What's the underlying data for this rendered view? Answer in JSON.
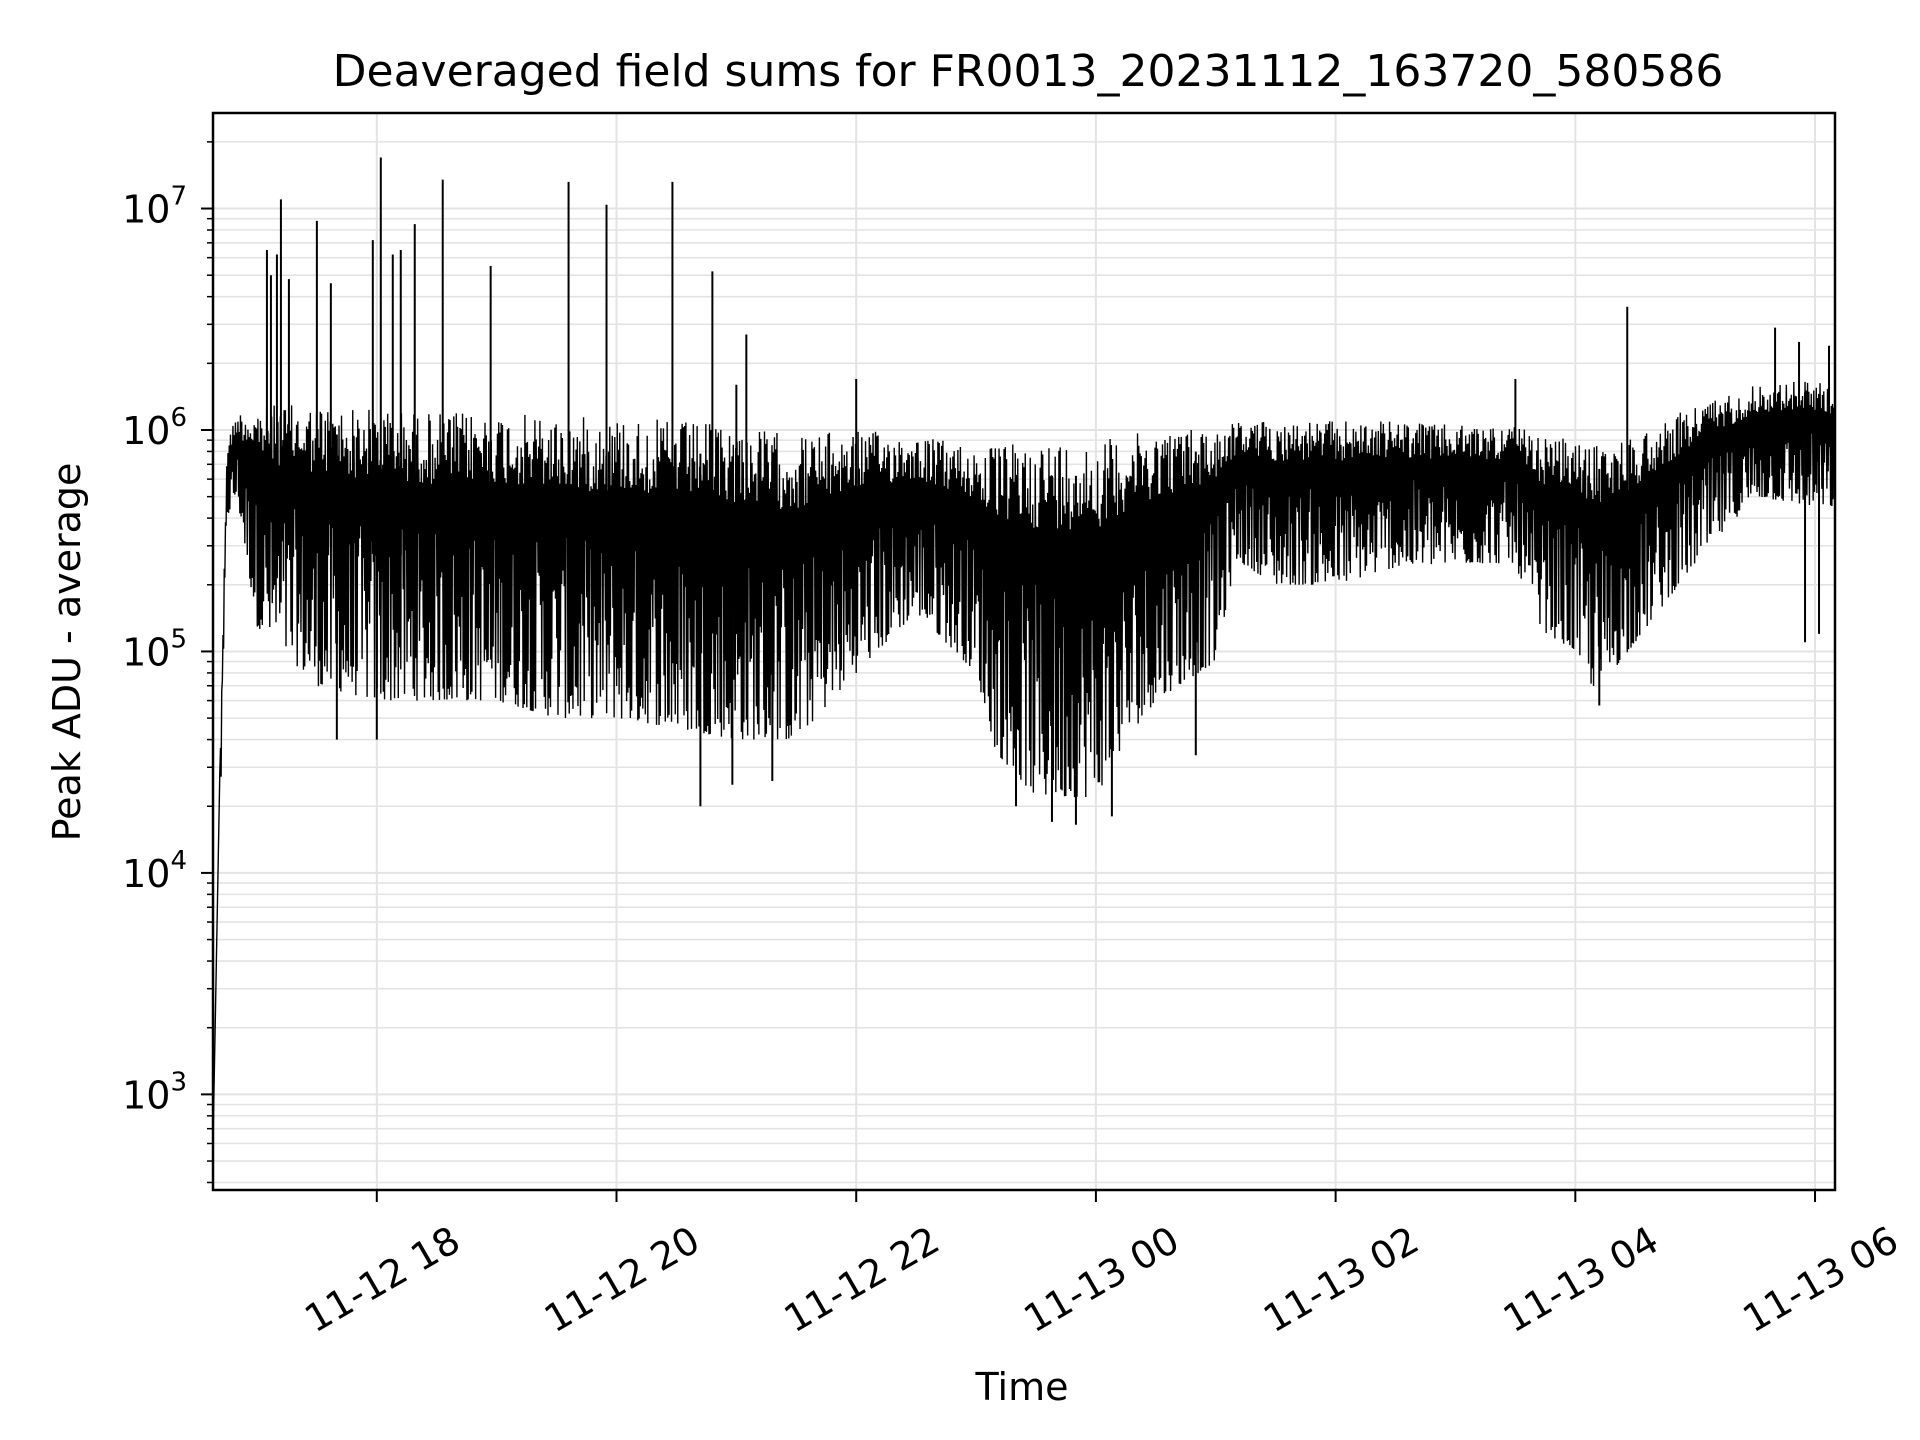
{
  "chart_data": {
    "type": "line",
    "title": "Deaveraged field sums for FR0013_20231112_163720_580586",
    "xlabel": "Time",
    "ylabel": "Peak ADU - average",
    "yscale": "log",
    "ylim": [
      370,
      27000000
    ],
    "xlim": [
      "2023-11-12 16:38",
      "2023-11-13 06:10"
    ],
    "grid": true,
    "line_color": "#000000",
    "grid_color": "#e3e3e3",
    "x_ticks": [
      {
        "value": "2023-11-12 18:00",
        "label": "11-12 18"
      },
      {
        "value": "2023-11-12 20:00",
        "label": "11-12 20"
      },
      {
        "value": "2023-11-12 22:00",
        "label": "11-12 22"
      },
      {
        "value": "2023-11-13 00:00",
        "label": "11-13 00"
      },
      {
        "value": "2023-11-13 02:00",
        "label": "11-13 02"
      },
      {
        "value": "2023-11-13 04:00",
        "label": "11-13 04"
      },
      {
        "value": "2023-11-13 06:00",
        "label": "11-13 06"
      }
    ],
    "y_ticks": [
      {
        "value": 1000,
        "base": "10",
        "exp": "3"
      },
      {
        "value": 10000,
        "base": "10",
        "exp": "4"
      },
      {
        "value": 100000,
        "base": "10",
        "exp": "5"
      },
      {
        "value": 1000000,
        "base": "10",
        "exp": "6"
      },
      {
        "value": 10000000,
        "base": "10",
        "exp": "7"
      }
    ],
    "envelope": {
      "x": [
        "2023-11-12 16:38",
        "2023-11-12 16:45",
        "2023-11-12 16:50",
        "2023-11-12 17:00",
        "2023-11-12 17:30",
        "2023-11-12 18:00",
        "2023-11-12 18:30",
        "2023-11-12 19:00",
        "2023-11-12 19:30",
        "2023-11-12 20:00",
        "2023-11-12 20:30",
        "2023-11-12 21:00",
        "2023-11-12 21:30",
        "2023-11-12 22:00",
        "2023-11-12 22:30",
        "2023-11-12 23:00",
        "2023-11-12 23:10",
        "2023-11-12 23:30",
        "2023-11-13 00:00",
        "2023-11-13 00:15",
        "2023-11-13 00:30",
        "2023-11-13 01:00",
        "2023-11-13 01:10",
        "2023-11-13 01:30",
        "2023-11-13 02:00",
        "2023-11-13 02:30",
        "2023-11-13 03:00",
        "2023-11-13 03:30",
        "2023-11-13 03:40",
        "2023-11-13 04:00",
        "2023-11-13 04:10",
        "2023-11-13 04:30",
        "2023-11-13 05:00",
        "2023-11-13 05:30",
        "2023-11-13 06:00",
        "2023-11-13 06:10"
      ],
      "high": [
        1200,
        900000,
        1200000,
        1300000,
        1300000,
        1250000,
        1200000,
        1200000,
        1150000,
        1150000,
        1100000,
        1050000,
        950000,
        1000000,
        950000,
        850000,
        850000,
        900000,
        900000,
        950000,
        1000000,
        1050000,
        1100000,
        1100000,
        1100000,
        1100000,
        1050000,
        1050000,
        950000,
        900000,
        850000,
        950000,
        1300000,
        1600000,
        1700000,
        1500000
      ],
      "low": [
        600,
        400000,
        500000,
        130000,
        70000,
        60000,
        60000,
        60000,
        50000,
        50000,
        45000,
        40000,
        40000,
        80000,
        150000,
        80000,
        35000,
        22000,
        22000,
        40000,
        60000,
        90000,
        260000,
        200000,
        200000,
        240000,
        250000,
        250000,
        130000,
        100000,
        65000,
        110000,
        250000,
        500000,
        450000,
        450000
      ]
    },
    "spikes": [
      {
        "x": "2023-11-12 17:05",
        "y": 6500000
      },
      {
        "x": "2023-11-12 17:07",
        "y": 5000000
      },
      {
        "x": "2023-11-12 17:10",
        "y": 6200000
      },
      {
        "x": "2023-11-12 17:12",
        "y": 11000000
      },
      {
        "x": "2023-11-12 17:16",
        "y": 4800000
      },
      {
        "x": "2023-11-12 17:30",
        "y": 8800000
      },
      {
        "x": "2023-11-12 17:37",
        "y": 4600000
      },
      {
        "x": "2023-11-12 17:58",
        "y": 7200000
      },
      {
        "x": "2023-11-12 18:02",
        "y": 17000000
      },
      {
        "x": "2023-11-12 18:08",
        "y": 6200000
      },
      {
        "x": "2023-11-12 18:12",
        "y": 6500000
      },
      {
        "x": "2023-11-12 18:19",
        "y": 8500000
      },
      {
        "x": "2023-11-12 18:33",
        "y": 13500000
      },
      {
        "x": "2023-11-12 18:57",
        "y": 5500000
      },
      {
        "x": "2023-11-12 19:36",
        "y": 13200000
      },
      {
        "x": "2023-11-12 19:55",
        "y": 10400000
      },
      {
        "x": "2023-11-12 20:28",
        "y": 13200000
      },
      {
        "x": "2023-11-12 20:48",
        "y": 5200000
      },
      {
        "x": "2023-11-12 21:05",
        "y": 2700000
      },
      {
        "x": "2023-11-12 21:00",
        "y": 1600000
      },
      {
        "x": "2023-11-12 22:00",
        "y": 1700000
      },
      {
        "x": "2023-11-13 04:26",
        "y": 3600000
      },
      {
        "x": "2023-11-13 05:40",
        "y": 2900000
      },
      {
        "x": "2023-11-13 05:52",
        "y": 2500000
      },
      {
        "x": "2023-11-13 06:07",
        "y": 2400000
      },
      {
        "x": "2023-11-13 03:30",
        "y": 1700000
      },
      {
        "x": "2023-11-12 23:20",
        "y": 20000
      },
      {
        "x": "2023-11-12 23:38",
        "y": 17000
      },
      {
        "x": "2023-11-12 23:50",
        "y": 16500
      },
      {
        "x": "2023-11-13 00:08",
        "y": 18000
      },
      {
        "x": "2023-11-12 20:42",
        "y": 20000
      },
      {
        "x": "2023-11-12 20:58",
        "y": 25000
      },
      {
        "x": "2023-11-12 21:18",
        "y": 26000
      },
      {
        "x": "2023-11-12 17:40",
        "y": 40000
      },
      {
        "x": "2023-11-12 18:00",
        "y": 40000
      },
      {
        "x": "2023-11-13 04:12",
        "y": 57000
      },
      {
        "x": "2023-11-13 00:50",
        "y": 34000
      },
      {
        "x": "2023-11-13 05:55",
        "y": 110000
      },
      {
        "x": "2023-11-13 06:02",
        "y": 120000
      }
    ]
  }
}
